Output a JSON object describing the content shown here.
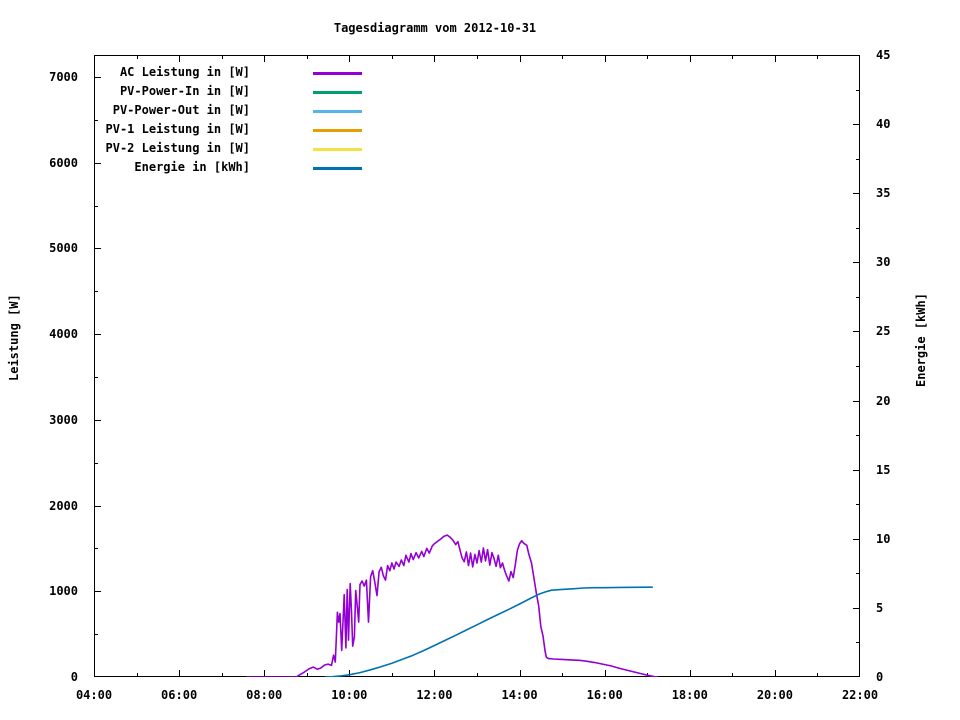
{
  "chart_data": {
    "type": "line",
    "title": "Tagesdiagramm vom 2012-10-31",
    "y1_label": "Leistung [W]",
    "y2_label": "Energie [kWh]",
    "x_range": [
      4,
      22
    ],
    "y1_range": [
      0,
      7257
    ],
    "y2_range": [
      0,
      45
    ],
    "grid": false,
    "legend_position": "top-left-inside",
    "x_ticks": [
      {
        "v": 4,
        "label": "04:00"
      },
      {
        "v": 6,
        "label": "06:00"
      },
      {
        "v": 8,
        "label": "08:00"
      },
      {
        "v": 10,
        "label": "10:00"
      },
      {
        "v": 12,
        "label": "12:00"
      },
      {
        "v": 14,
        "label": "14:00"
      },
      {
        "v": 16,
        "label": "16:00"
      },
      {
        "v": 18,
        "label": "18:00"
      },
      {
        "v": 20,
        "label": "20:00"
      },
      {
        "v": 22,
        "label": "22:00"
      }
    ],
    "x_minor_ticks": [
      5,
      7,
      9,
      11,
      13,
      15,
      17,
      19,
      21
    ],
    "y1_ticks": [
      {
        "v": 0,
        "label": "0"
      },
      {
        "v": 1000,
        "label": "1000"
      },
      {
        "v": 2000,
        "label": "2000"
      },
      {
        "v": 3000,
        "label": "3000"
      },
      {
        "v": 4000,
        "label": "4000"
      },
      {
        "v": 5000,
        "label": "5000"
      },
      {
        "v": 6000,
        "label": "6000"
      },
      {
        "v": 7000,
        "label": "7000"
      }
    ],
    "y1_minor_ticks": [
      500,
      1500,
      2500,
      3500,
      4500,
      5500,
      6500
    ],
    "y2_ticks": [
      {
        "v": 0,
        "label": "0"
      },
      {
        "v": 5,
        "label": "5"
      },
      {
        "v": 10,
        "label": "10"
      },
      {
        "v": 15,
        "label": "15"
      },
      {
        "v": 20,
        "label": "20"
      },
      {
        "v": 25,
        "label": "25"
      },
      {
        "v": 30,
        "label": "30"
      },
      {
        "v": 35,
        "label": "35"
      },
      {
        "v": 40,
        "label": "40"
      },
      {
        "v": 45,
        "label": "45"
      }
    ],
    "y2_minor_ticks": [
      2.5,
      7.5,
      12.5,
      17.5,
      22.5,
      27.5,
      32.5,
      37.5,
      42.5
    ],
    "series": [
      {
        "name": "AC Leistung in [W]",
        "color": "#9400d3",
        "axis": "y1",
        "points": [
          [
            7.58,
            0
          ],
          [
            8.0,
            0
          ],
          [
            8.4,
            0
          ],
          [
            8.75,
            0
          ],
          [
            8.83,
            25
          ],
          [
            8.95,
            60
          ],
          [
            9.05,
            95
          ],
          [
            9.15,
            115
          ],
          [
            9.25,
            90
          ],
          [
            9.33,
            105
          ],
          [
            9.42,
            140
          ],
          [
            9.5,
            150
          ],
          [
            9.58,
            135
          ],
          [
            9.63,
            255
          ],
          [
            9.67,
            175
          ],
          [
            9.72,
            755
          ],
          [
            9.75,
            640
          ],
          [
            9.78,
            740
          ],
          [
            9.82,
            310
          ],
          [
            9.85,
            620
          ],
          [
            9.88,
            960
          ],
          [
            9.92,
            340
          ],
          [
            9.95,
            1020
          ],
          [
            9.98,
            430
          ],
          [
            10.02,
            1090
          ],
          [
            10.05,
            760
          ],
          [
            10.08,
            360
          ],
          [
            10.12,
            470
          ],
          [
            10.15,
            1010
          ],
          [
            10.18,
            860
          ],
          [
            10.22,
            640
          ],
          [
            10.25,
            1080
          ],
          [
            10.3,
            1120
          ],
          [
            10.35,
            1060
          ],
          [
            10.4,
            1130
          ],
          [
            10.45,
            640
          ],
          [
            10.5,
            1170
          ],
          [
            10.55,
            1240
          ],
          [
            10.6,
            1100
          ],
          [
            10.65,
            950
          ],
          [
            10.7,
            1230
          ],
          [
            10.75,
            1280
          ],
          [
            10.8,
            1180
          ],
          [
            10.85,
            1130
          ],
          [
            10.9,
            1300
          ],
          [
            10.95,
            1240
          ],
          [
            11.0,
            1330
          ],
          [
            11.05,
            1260
          ],
          [
            11.1,
            1340
          ],
          [
            11.17,
            1290
          ],
          [
            11.22,
            1365
          ],
          [
            11.28,
            1300
          ],
          [
            11.33,
            1420
          ],
          [
            11.4,
            1340
          ],
          [
            11.45,
            1440
          ],
          [
            11.5,
            1370
          ],
          [
            11.57,
            1450
          ],
          [
            11.63,
            1390
          ],
          [
            11.7,
            1465
          ],
          [
            11.75,
            1405
          ],
          [
            11.82,
            1500
          ],
          [
            11.88,
            1445
          ],
          [
            11.95,
            1530
          ],
          [
            12.0,
            1555
          ],
          [
            12.08,
            1585
          ],
          [
            12.15,
            1610
          ],
          [
            12.22,
            1640
          ],
          [
            12.3,
            1655
          ],
          [
            12.37,
            1630
          ],
          [
            12.43,
            1600
          ],
          [
            12.5,
            1545
          ],
          [
            12.55,
            1580
          ],
          [
            12.6,
            1480
          ],
          [
            12.65,
            1390
          ],
          [
            12.7,
            1345
          ],
          [
            12.75,
            1460
          ],
          [
            12.8,
            1300
          ],
          [
            12.85,
            1445
          ],
          [
            12.9,
            1285
          ],
          [
            12.95,
            1430
          ],
          [
            13.0,
            1330
          ],
          [
            13.05,
            1475
          ],
          [
            13.1,
            1340
          ],
          [
            13.15,
            1505
          ],
          [
            13.2,
            1355
          ],
          [
            13.25,
            1485
          ],
          [
            13.3,
            1305
          ],
          [
            13.35,
            1450
          ],
          [
            13.4,
            1385
          ],
          [
            13.45,
            1290
          ],
          [
            13.5,
            1420
          ],
          [
            13.55,
            1275
          ],
          [
            13.6,
            1330
          ],
          [
            13.65,
            1240
          ],
          [
            13.7,
            1175
          ],
          [
            13.75,
            1120
          ],
          [
            13.8,
            1230
          ],
          [
            13.85,
            1160
          ],
          [
            13.9,
            1310
          ],
          [
            13.95,
            1480
          ],
          [
            14.0,
            1555
          ],
          [
            14.05,
            1590
          ],
          [
            14.1,
            1560
          ],
          [
            14.17,
            1535
          ],
          [
            14.22,
            1430
          ],
          [
            14.28,
            1330
          ],
          [
            14.33,
            1180
          ],
          [
            14.4,
            960
          ],
          [
            14.45,
            830
          ],
          [
            14.5,
            590
          ],
          [
            14.55,
            480
          ],
          [
            14.6,
            300
          ],
          [
            14.63,
            230
          ],
          [
            14.68,
            215
          ],
          [
            14.8,
            210
          ],
          [
            15.0,
            205
          ],
          [
            15.2,
            200
          ],
          [
            15.4,
            195
          ],
          [
            15.55,
            185
          ],
          [
            15.75,
            170
          ],
          [
            15.95,
            150
          ],
          [
            16.15,
            130
          ],
          [
            16.35,
            100
          ],
          [
            16.6,
            70
          ],
          [
            16.85,
            40
          ],
          [
            17.05,
            15
          ],
          [
            17.17,
            3
          ],
          [
            17.25,
            0
          ]
        ]
      },
      {
        "name": "PV-Power-In in [W]",
        "color": "#009e73",
        "axis": "y1",
        "points": []
      },
      {
        "name": "PV-Power-Out in [W]",
        "color": "#56b4e9",
        "axis": "y1",
        "points": []
      },
      {
        "name": "PV-1 Leistung in [W]",
        "color": "#e69f00",
        "axis": "y1",
        "points": []
      },
      {
        "name": "PV-2 Leistung in [W]",
        "color": "#f0e442",
        "axis": "y1",
        "points": []
      },
      {
        "name": "Energie in [kWh]",
        "color": "#0072b2",
        "axis": "y2",
        "points": [
          [
            9.42,
            0
          ],
          [
            9.6,
            0.02
          ],
          [
            9.8,
            0.08
          ],
          [
            10.0,
            0.16
          ],
          [
            10.25,
            0.32
          ],
          [
            10.5,
            0.52
          ],
          [
            10.75,
            0.75
          ],
          [
            11.0,
            1.0
          ],
          [
            11.25,
            1.28
          ],
          [
            11.5,
            1.58
          ],
          [
            11.75,
            1.92
          ],
          [
            12.0,
            2.28
          ],
          [
            12.25,
            2.65
          ],
          [
            12.5,
            3.02
          ],
          [
            12.75,
            3.4
          ],
          [
            13.0,
            3.78
          ],
          [
            13.25,
            4.16
          ],
          [
            13.5,
            4.53
          ],
          [
            13.75,
            4.9
          ],
          [
            14.0,
            5.28
          ],
          [
            14.25,
            5.68
          ],
          [
            14.45,
            5.98
          ],
          [
            14.6,
            6.15
          ],
          [
            14.75,
            6.28
          ],
          [
            15.0,
            6.34
          ],
          [
            15.25,
            6.38
          ],
          [
            15.5,
            6.44
          ],
          [
            15.75,
            6.46
          ],
          [
            16.0,
            6.46
          ],
          [
            16.35,
            6.48
          ],
          [
            16.7,
            6.49
          ],
          [
            17.0,
            6.5
          ],
          [
            17.13,
            6.5
          ]
        ]
      }
    ]
  }
}
